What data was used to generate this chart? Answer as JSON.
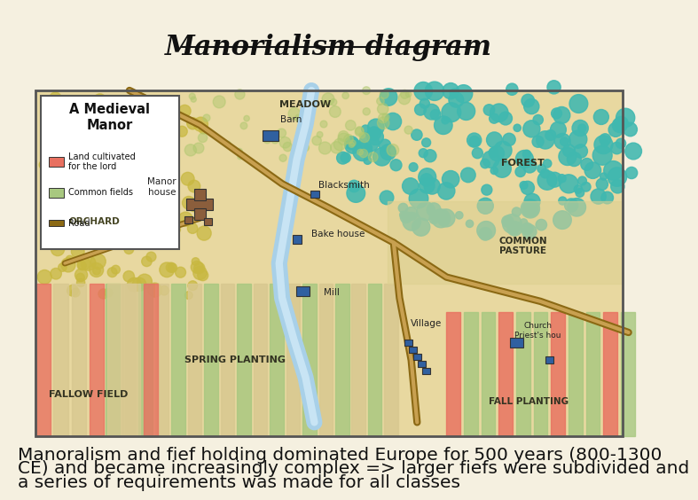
{
  "title": "Manorialism diagram",
  "title_fontsize": 22,
  "title_style": "italic",
  "title_weight": "bold",
  "background_color": "#f5f0e0",
  "caption_lines": [
    "Manoralism and fief holding dominated Europe for 500 years (800-1300",
    "CE) and became increasingly complex => larger fiefs were subdivided and",
    "a series of requirements was made for all classes"
  ],
  "caption_fontsize": 14.5,
  "colors": {
    "map_bg": "#e8d8a0",
    "map_border": "#555555",
    "land_lord": "#e87060",
    "common_fields": "#a8c880",
    "road": "#8B6914",
    "road_light": "#c8a050",
    "forest": "#40b8b0",
    "water": "#a8d0e8",
    "water_light": "#c8e4f4",
    "building_lord": "#8B5E3C",
    "building_blue": "#3060a0",
    "orchard_trees": "#c8b840",
    "meadow_trees": "#b0c870",
    "fallow": "#d8c890",
    "spring_green": "#a8c880",
    "pasture": "#ddd090",
    "legend_box": "#ffffff"
  }
}
